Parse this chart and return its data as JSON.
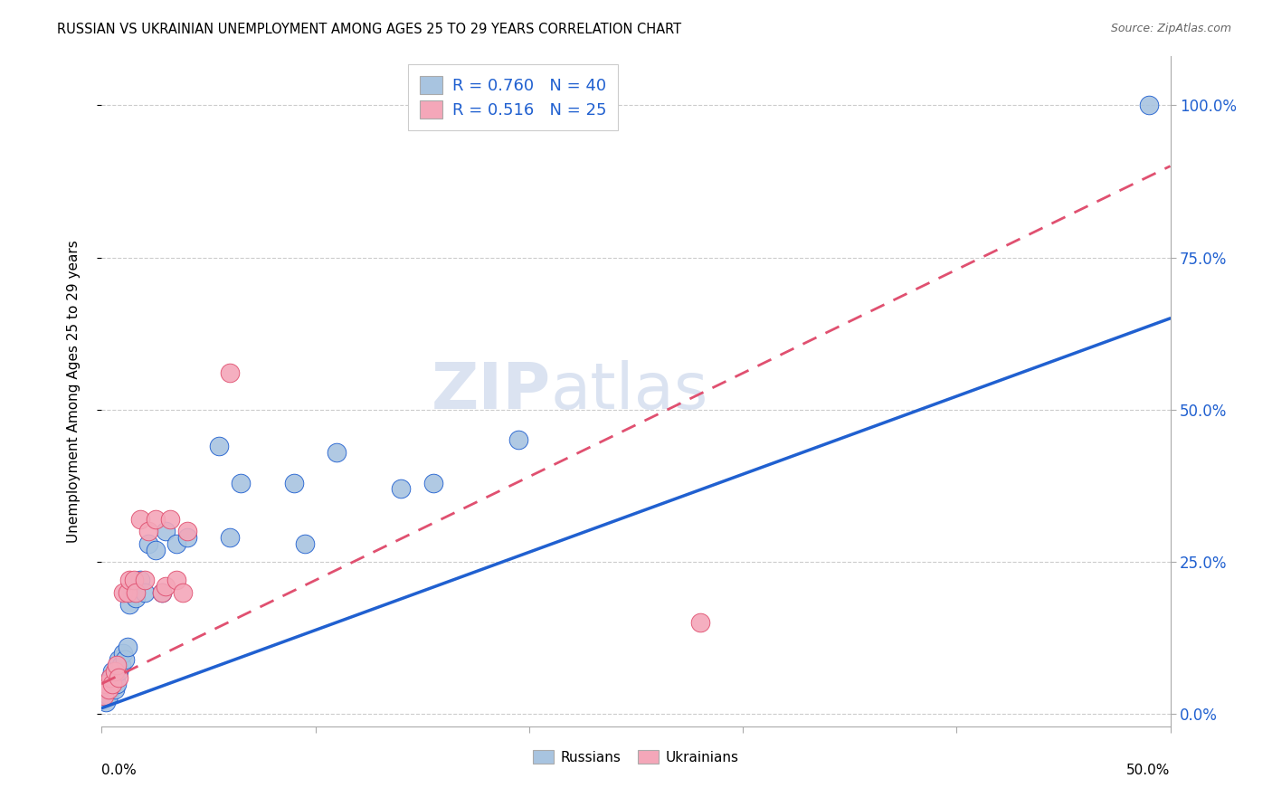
{
  "title": "RUSSIAN VS UKRAINIAN UNEMPLOYMENT AMONG AGES 25 TO 29 YEARS CORRELATION CHART",
  "source": "Source: ZipAtlas.com",
  "ylabel": "Unemployment Among Ages 25 to 29 years",
  "xlim": [
    0.0,
    0.5
  ],
  "ylim": [
    -0.02,
    1.08
  ],
  "ytick_labels": [
    "0.0%",
    "25.0%",
    "50.0%",
    "75.0%",
    "100.0%"
  ],
  "ytick_values": [
    0.0,
    0.25,
    0.5,
    0.75,
    1.0
  ],
  "xtick_values": [
    0.0,
    0.1,
    0.2,
    0.3,
    0.4,
    0.5
  ],
  "russian_color": "#a8c4e0",
  "ukrainian_color": "#f4a7b9",
  "russian_line_color": "#2060d0",
  "ukrainian_line_color": "#e05070",
  "watermark_zip": "ZIP",
  "watermark_atlas": "atlas",
  "ru_slope": 1.28,
  "ru_intercept": 0.01,
  "uk_slope": 1.7,
  "uk_intercept": 0.05,
  "russians_x": [
    0.001,
    0.002,
    0.002,
    0.003,
    0.003,
    0.004,
    0.004,
    0.005,
    0.005,
    0.006,
    0.006,
    0.007,
    0.008,
    0.008,
    0.009,
    0.01,
    0.011,
    0.012,
    0.013,
    0.014,
    0.015,
    0.016,
    0.018,
    0.02,
    0.022,
    0.025,
    0.028,
    0.03,
    0.035,
    0.04,
    0.055,
    0.06,
    0.065,
    0.09,
    0.095,
    0.11,
    0.14,
    0.155,
    0.195,
    0.49
  ],
  "russians_y": [
    0.03,
    0.04,
    0.02,
    0.05,
    0.03,
    0.04,
    0.06,
    0.05,
    0.07,
    0.06,
    0.04,
    0.05,
    0.07,
    0.09,
    0.08,
    0.1,
    0.09,
    0.11,
    0.18,
    0.2,
    0.2,
    0.19,
    0.22,
    0.2,
    0.28,
    0.27,
    0.2,
    0.3,
    0.28,
    0.29,
    0.44,
    0.29,
    0.38,
    0.38,
    0.28,
    0.43,
    0.37,
    0.38,
    0.45,
    1.0
  ],
  "ukrainians_x": [
    0.001,
    0.002,
    0.003,
    0.004,
    0.005,
    0.006,
    0.007,
    0.008,
    0.01,
    0.012,
    0.013,
    0.015,
    0.016,
    0.018,
    0.02,
    0.022,
    0.025,
    0.028,
    0.03,
    0.032,
    0.035,
    0.038,
    0.04,
    0.06,
    0.28
  ],
  "ukrainians_y": [
    0.03,
    0.05,
    0.04,
    0.06,
    0.05,
    0.07,
    0.08,
    0.06,
    0.2,
    0.2,
    0.22,
    0.22,
    0.2,
    0.32,
    0.22,
    0.3,
    0.32,
    0.2,
    0.21,
    0.32,
    0.22,
    0.2,
    0.3,
    0.56,
    0.15
  ]
}
